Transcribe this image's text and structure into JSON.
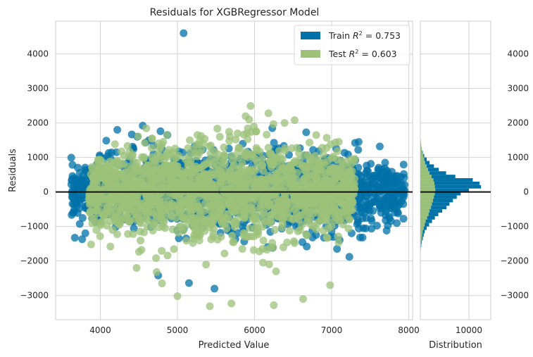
{
  "chart_data": {
    "type": "scatter",
    "title": "Residuals for XGBRegressor Model",
    "xlabel": "Predicted Value",
    "ylabel": "Residuals",
    "xlim": [
      3420,
      8050
    ],
    "ylim": [
      -3700,
      4950
    ],
    "xticks": [
      4000,
      5000,
      6000,
      7000,
      8000
    ],
    "yticks": [
      -3000,
      -2000,
      -1000,
      0,
      1000,
      2000,
      3000,
      4000
    ],
    "grid": true,
    "legend_position": "top-right",
    "colors": {
      "train": "#0072a8",
      "test": "#9cc27a",
      "zero_line": "#111111"
    },
    "series": [
      {
        "name": "Train",
        "r2_label": "0.753",
        "cloud": {
          "x_range": [
            3620,
            7950
          ],
          "y_sd": 560
        },
        "outliers": [
          {
            "x": 5080,
            "y": 4600
          },
          {
            "x": 4550,
            "y": 1920
          },
          {
            "x": 4220,
            "y": 1800
          },
          {
            "x": 4780,
            "y": 1760
          },
          {
            "x": 4870,
            "y": 1650
          },
          {
            "x": 4630,
            "y": 1500
          },
          {
            "x": 4420,
            "y": 1310
          },
          {
            "x": 4480,
            "y": 1600
          },
          {
            "x": 4690,
            "y": 1350
          },
          {
            "x": 3990,
            "y": 1060
          },
          {
            "x": 4110,
            "y": 1130
          },
          {
            "x": 4210,
            "y": 1150
          },
          {
            "x": 4050,
            "y": 960
          },
          {
            "x": 6230,
            "y": 1850
          },
          {
            "x": 6670,
            "y": 1730
          },
          {
            "x": 7350,
            "y": 1450
          },
          {
            "x": 7730,
            "y": 320
          },
          {
            "x": 7780,
            "y": 200
          },
          {
            "x": 7700,
            "y": -820
          },
          {
            "x": 7410,
            "y": -1050
          },
          {
            "x": 7230,
            "y": -1880
          },
          {
            "x": 7070,
            "y": -1650
          },
          {
            "x": 4750,
            "y": -2420
          },
          {
            "x": 5150,
            "y": -2640
          },
          {
            "x": 5480,
            "y": -2800
          },
          {
            "x": 3660,
            "y": -520
          }
        ]
      },
      {
        "name": "Test",
        "r2_label": "0.603",
        "cloud": {
          "x_range": [
            3850,
            7300
          ],
          "y_sd": 700
        },
        "outliers": [
          {
            "x": 6180,
            "y": 2280
          },
          {
            "x": 6520,
            "y": 2080
          },
          {
            "x": 6390,
            "y": 2000
          },
          {
            "x": 5930,
            "y": 2100
          },
          {
            "x": 5260,
            "y": 1650
          },
          {
            "x": 5160,
            "y": 1500
          },
          {
            "x": 4670,
            "y": 1550
          },
          {
            "x": 5550,
            "y": 1600
          },
          {
            "x": 5900,
            "y": 1700
          },
          {
            "x": 6800,
            "y": 1650
          },
          {
            "x": 5700,
            "y": -3230
          },
          {
            "x": 5420,
            "y": -3310
          },
          {
            "x": 6250,
            "y": -3280
          },
          {
            "x": 6630,
            "y": -3100
          },
          {
            "x": 5000,
            "y": -3020
          },
          {
            "x": 6980,
            "y": -2700
          },
          {
            "x": 4470,
            "y": -2200
          },
          {
            "x": 4800,
            "y": -2650
          },
          {
            "x": 3880,
            "y": -1520
          },
          {
            "x": 4130,
            "y": -1580
          }
        ]
      }
    ],
    "distribution": {
      "xlabel": "Distribution",
      "xlim": [
        0,
        14500
      ],
      "xticks": [
        10000
      ],
      "bin_width": 100,
      "train_bins": [
        {
          "y": -1600,
          "count": 200
        },
        {
          "y": -1500,
          "count": 300
        },
        {
          "y": -1400,
          "count": 500
        },
        {
          "y": -1300,
          "count": 700
        },
        {
          "y": -1200,
          "count": 900
        },
        {
          "y": -1100,
          "count": 1300
        },
        {
          "y": -1000,
          "count": 1800
        },
        {
          "y": -900,
          "count": 2400
        },
        {
          "y": -800,
          "count": 3000
        },
        {
          "y": -700,
          "count": 3700
        },
        {
          "y": -600,
          "count": 4500
        },
        {
          "y": -500,
          "count": 5400
        },
        {
          "y": -400,
          "count": 6000
        },
        {
          "y": -300,
          "count": 6700
        },
        {
          "y": -200,
          "count": 7500
        },
        {
          "y": -100,
          "count": 8300
        },
        {
          "y": 0,
          "count": 10000
        },
        {
          "y": 100,
          "count": 12500
        },
        {
          "y": 200,
          "count": 12200
        },
        {
          "y": 300,
          "count": 10800
        },
        {
          "y": 400,
          "count": 7200
        },
        {
          "y": 500,
          "count": 5300
        },
        {
          "y": 600,
          "count": 3800
        },
        {
          "y": 700,
          "count": 2800
        },
        {
          "y": 800,
          "count": 1900
        },
        {
          "y": 900,
          "count": 1300
        },
        {
          "y": 1000,
          "count": 800
        },
        {
          "y": 1100,
          "count": 500
        },
        {
          "y": 1200,
          "count": 300
        },
        {
          "y": 1300,
          "count": 150
        },
        {
          "y": 1400,
          "count": 80
        }
      ],
      "test_bins": [
        {
          "y": -1700,
          "count": 100
        },
        {
          "y": -1600,
          "count": 150
        },
        {
          "y": -1500,
          "count": 200
        },
        {
          "y": -1400,
          "count": 300
        },
        {
          "y": -1300,
          "count": 400
        },
        {
          "y": -1200,
          "count": 500
        },
        {
          "y": -1100,
          "count": 700
        },
        {
          "y": -1000,
          "count": 900
        },
        {
          "y": -900,
          "count": 1100
        },
        {
          "y": -800,
          "count": 1400
        },
        {
          "y": -700,
          "count": 1700
        },
        {
          "y": -600,
          "count": 1900
        },
        {
          "y": -500,
          "count": 2200
        },
        {
          "y": -400,
          "count": 2400
        },
        {
          "y": -300,
          "count": 2600
        },
        {
          "y": -200,
          "count": 2800
        },
        {
          "y": -100,
          "count": 3000
        },
        {
          "y": 0,
          "count": 3100
        },
        {
          "y": 100,
          "count": 3000
        },
        {
          "y": 200,
          "count": 2900
        },
        {
          "y": 300,
          "count": 2700
        },
        {
          "y": 400,
          "count": 2300
        },
        {
          "y": 500,
          "count": 1900
        },
        {
          "y": 600,
          "count": 1600
        },
        {
          "y": 700,
          "count": 1300
        },
        {
          "y": 800,
          "count": 1000
        },
        {
          "y": 900,
          "count": 800
        },
        {
          "y": 1000,
          "count": 600
        },
        {
          "y": 1100,
          "count": 400
        },
        {
          "y": 1200,
          "count": 300
        },
        {
          "y": 1300,
          "count": 200
        },
        {
          "y": 1400,
          "count": 120
        }
      ]
    }
  }
}
